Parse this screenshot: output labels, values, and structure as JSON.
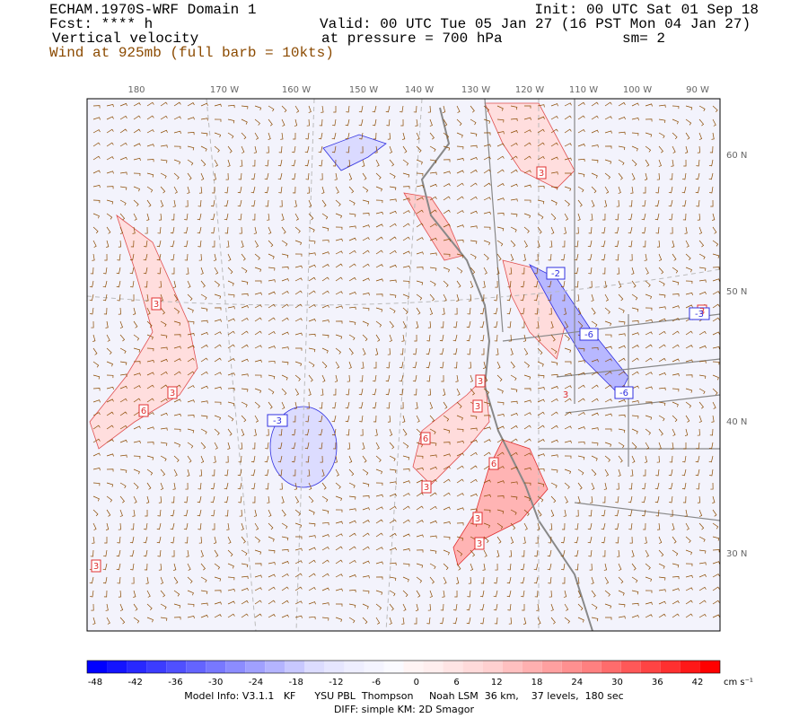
{
  "header": {
    "model": "ECHAM.1970S-WRF Domain 1",
    "forecast": "Fcst: **** h",
    "field": "Vertical velocity",
    "wind": "Wind at 925mb (full barb = 10kts)",
    "init": "Init: 00 UTC Sat 01 Sep 18",
    "valid": "Valid: 00 UTC Tue 05 Jan 27 (16 PST Mon 04 Jan 27)",
    "pressure": "at pressure =  700 hPa",
    "smoothing": "sm= 2"
  },
  "longitude_labels": [
    "180",
    "170 W",
    "160 W",
    "150 W",
    "140 W",
    "130 W",
    "120 W",
    "110 W",
    "100 W",
    "90 W"
  ],
  "latitude_labels": [
    "60 N",
    "50 N",
    "40 N",
    "30 N"
  ],
  "contour_labels": [
    "3",
    "3",
    "3",
    "6",
    "3",
    "-3",
    "3",
    "3",
    "6",
    "6",
    "3",
    "3",
    "3",
    "3",
    "-2",
    "-6",
    "-6",
    "-3",
    "3"
  ],
  "colorbar": {
    "labels": [
      "-48",
      "-42",
      "-36",
      "-30",
      "-24",
      "-18",
      "-12",
      "-6",
      "0",
      "6",
      "12",
      "18",
      "24",
      "30",
      "36",
      "42"
    ],
    "unit": "cm s⁻¹",
    "colors": [
      "#0000ff",
      "#1414ff",
      "#2828ff",
      "#3c3cff",
      "#5050ff",
      "#6464ff",
      "#7878ff",
      "#8c8cff",
      "#a0a0ff",
      "#b4b4ff",
      "#c8c8ff",
      "#dcdcff",
      "#e6e6ff",
      "#eeeeff",
      "#f4f4ff",
      "#fafaff",
      "#fff4f4",
      "#ffeeee",
      "#ffe4e4",
      "#ffdada",
      "#ffd0d0",
      "#ffc0c0",
      "#ffb0b0",
      "#ffa0a0",
      "#ff9090",
      "#ff8080",
      "#ff6c6c",
      "#ff5858",
      "#ff4444",
      "#ff3030",
      "#ff1818",
      "#ff0000"
    ]
  },
  "footer": {
    "model_info": "Model Info: V3.1.1   KF      YSU PBL  Thompson     Noah LSM  36 km,    37 levels,  180 sec",
    "diff": "DIFF: simple KM: 2D Smagor"
  }
}
